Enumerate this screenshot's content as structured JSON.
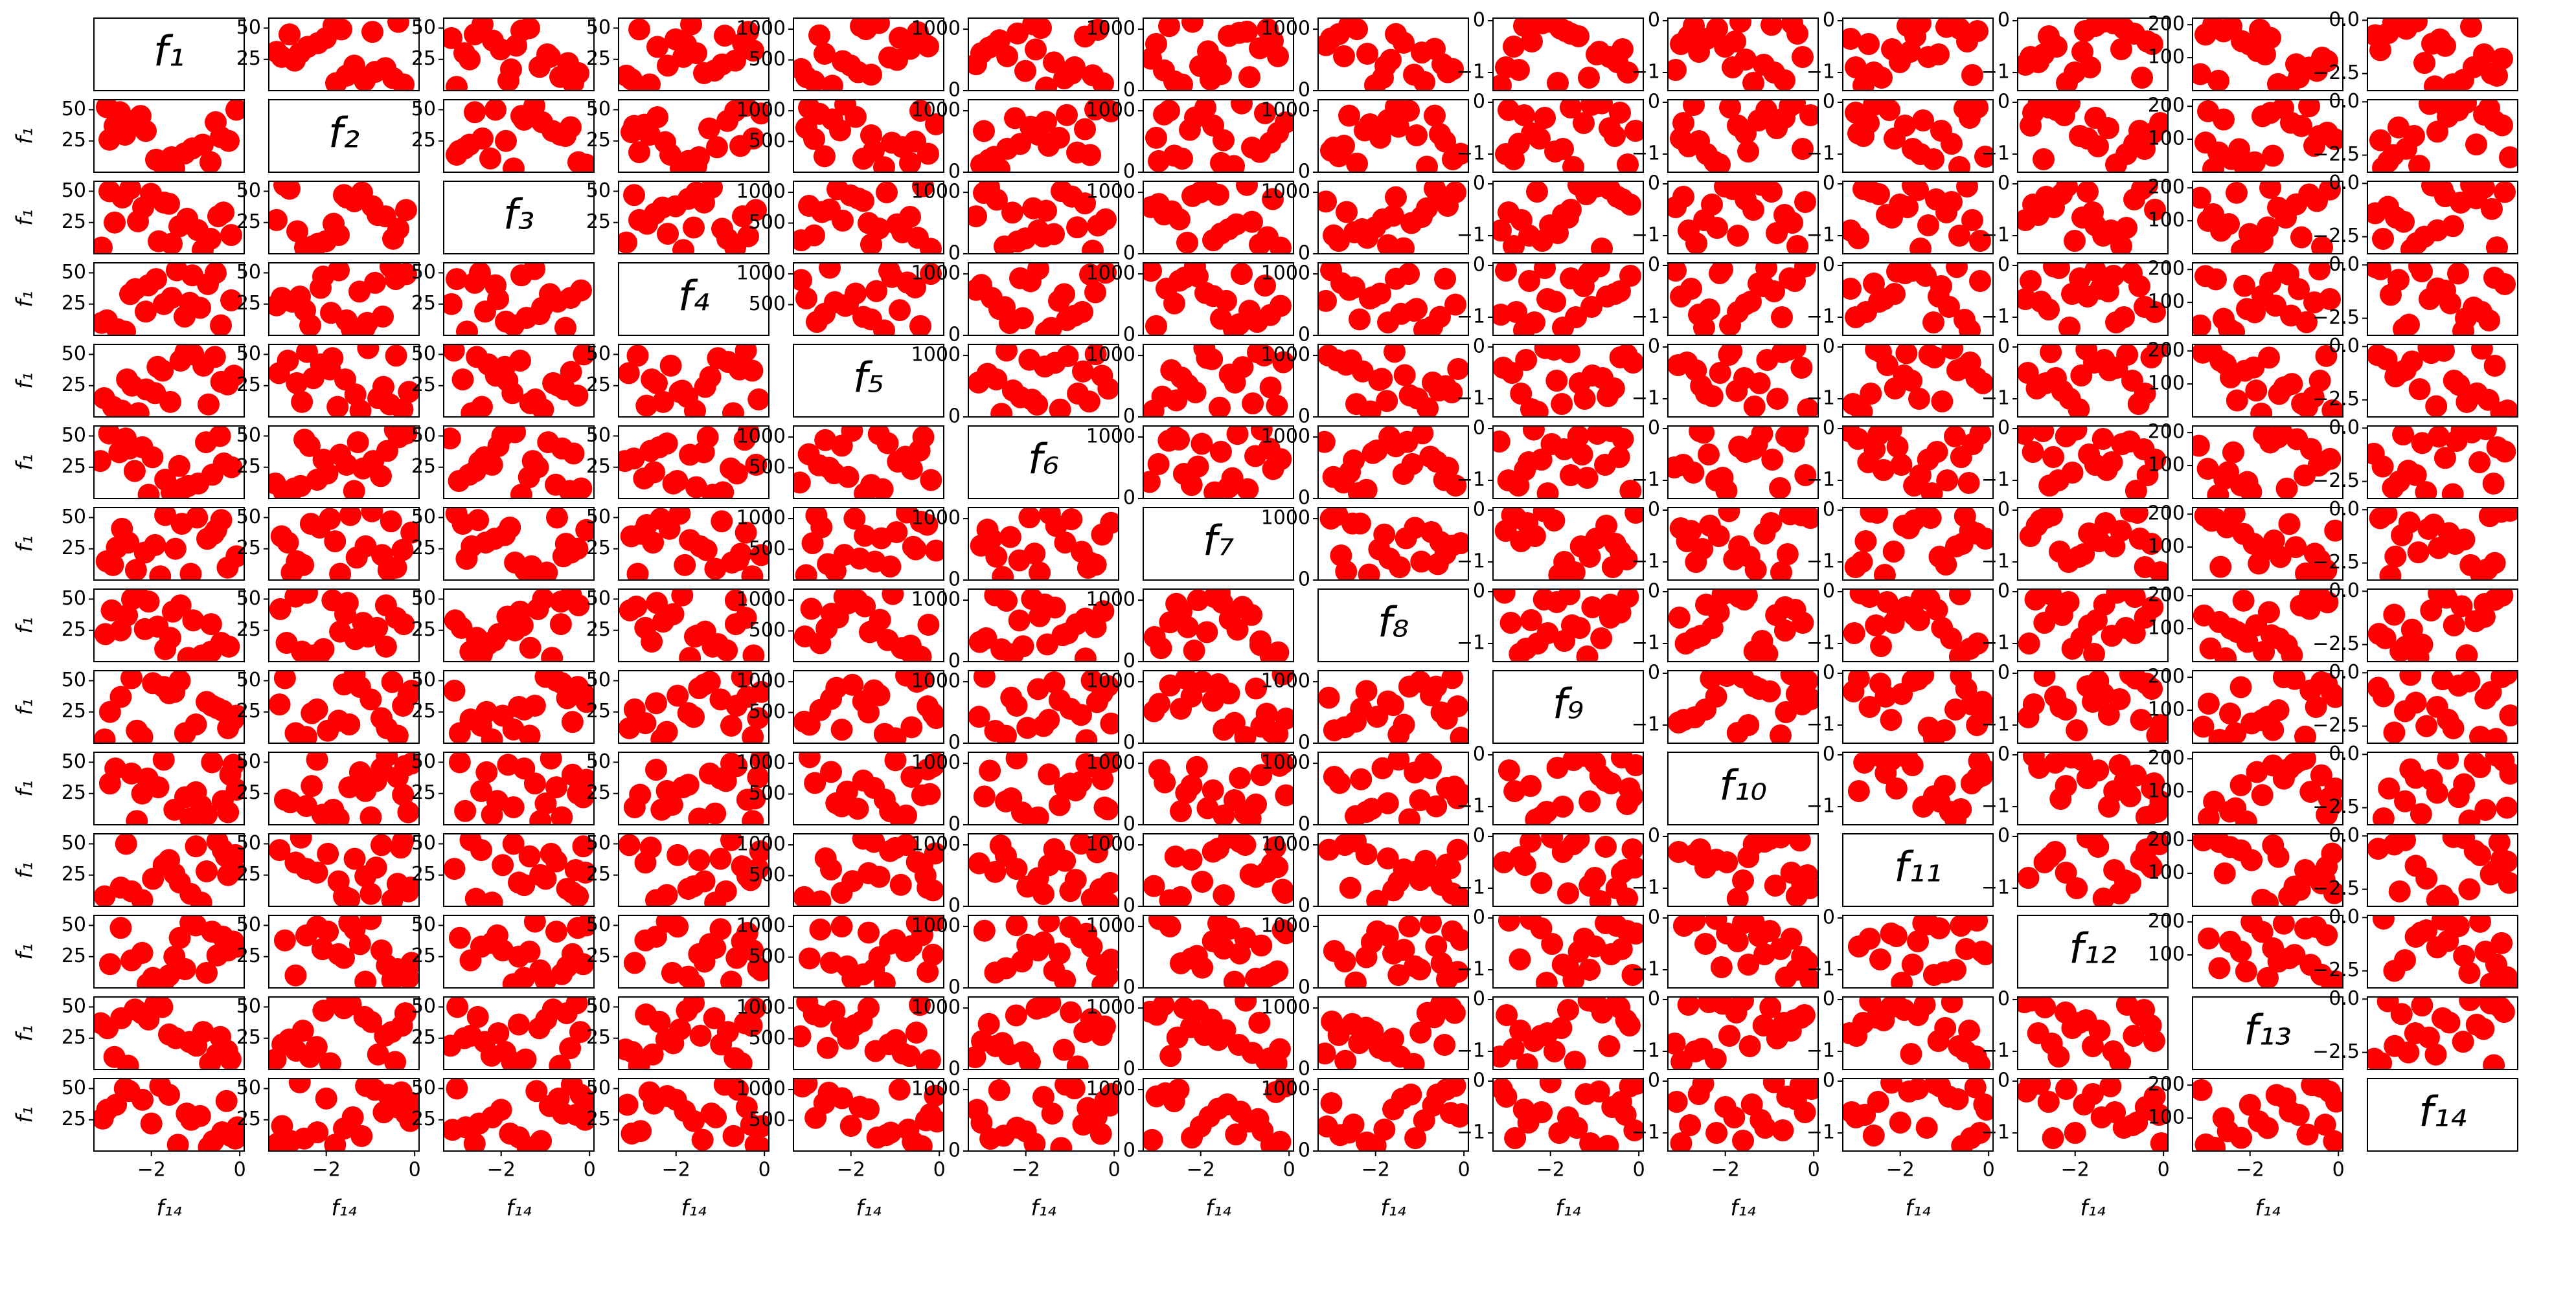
{
  "chart_data": {
    "type": "scatter_matrix",
    "color": "#ff0000",
    "variables": [
      {
        "name": "f₁",
        "lim": [
          0,
          58
        ],
        "ticks": [
          25,
          50
        ],
        "values": [
          12,
          48,
          25,
          33,
          8,
          52,
          19,
          41,
          5,
          28,
          37,
          15,
          45,
          22,
          10,
          30,
          50,
          3,
          26,
          40
        ]
      },
      {
        "name": "f₂",
        "lim": [
          0,
          58
        ],
        "ticks": [
          25,
          50
        ],
        "values": [
          30,
          10,
          52,
          20,
          45,
          5,
          38,
          15,
          27,
          49,
          8,
          35,
          18,
          42,
          24,
          12,
          55,
          31,
          6,
          47
        ]
      },
      {
        "name": "f₃",
        "lim": [
          0,
          58
        ],
        "ticks": [
          25,
          50
        ],
        "values": [
          45,
          22,
          8,
          50,
          30,
          14,
          40,
          27,
          3,
          36,
          19,
          53,
          11,
          33,
          25,
          48,
          6,
          42,
          17,
          29
        ]
      },
      {
        "name": "f₄",
        "lim": [
          0,
          58
        ],
        "ticks": [
          25,
          50
        ],
        "values": [
          5,
          38,
          27,
          14,
          49,
          32,
          20,
          44,
          9,
          53,
          16,
          35,
          24,
          41,
          3,
          30,
          47,
          12,
          37,
          21
        ]
      },
      {
        "name": "f₅",
        "lim": [
          0,
          1180
        ],
        "ticks": [
          500,
          1000
        ],
        "values": [
          600,
          950,
          300,
          1100,
          150,
          720,
          480,
          860,
          220,
          1000,
          540,
          80,
          680,
          410,
          900,
          260,
          780,
          350,
          1050,
          500
        ]
      },
      {
        "name": "f₆",
        "lim": [
          0,
          1180
        ],
        "ticks": [
          0,
          1000
        ],
        "values": [
          820,
          250,
          1080,
          460,
          700,
          120,
          930,
          380,
          610,
          1020,
          200,
          560,
          880,
          320,
          740,
          50,
          990,
          430,
          670,
          280
        ]
      },
      {
        "name": "f₇",
        "lim": [
          0,
          1180
        ],
        "ticks": [
          0,
          1000
        ],
        "values": [
          150,
          1000,
          640,
          890,
          330,
          560,
          1120,
          220,
          760,
          480,
          940,
          100,
          690,
          400,
          1050,
          270,
          810,
          520,
          180,
          960
        ]
      },
      {
        "name": "f₈",
        "lim": [
          0,
          1180
        ],
        "ticks": [
          0,
          1000
        ],
        "values": [
          1060,
          430,
          210,
          780,
          920,
          350,
          600,
          140,
          850,
          500,
          260,
          1000,
          680,
          90,
          560,
          920,
          300,
          740,
          400,
          620
        ]
      },
      {
        "name": "f₉",
        "lim": [
          -1.35,
          0.05
        ],
        "ticks": [
          {
            "value": -1,
            "label": "−1"
          },
          0
        ],
        "values": [
          -0.1,
          -0.8,
          -1.2,
          -0.3,
          -0.5,
          -1.0,
          -0.05,
          -0.6,
          -0.9,
          -0.2,
          -1.1,
          -0.4,
          -0.7,
          -0.02,
          -0.95,
          -0.25,
          -0.55,
          -1.25,
          -0.15,
          -0.65
        ]
      },
      {
        "name": "f₁₀",
        "lim": [
          -1.35,
          0.05
        ],
        "ticks": [
          {
            "value": -1,
            "label": "−1"
          },
          0
        ],
        "values": [
          -0.6,
          -0.05,
          -0.9,
          -1.2,
          -0.3,
          -0.7,
          -0.15,
          -1.0,
          -0.45,
          -0.02,
          -0.85,
          -0.35,
          -1.15,
          -0.5,
          -0.1,
          -0.75,
          -0.25,
          -0.95,
          -0.4,
          -0.08
        ]
      },
      {
        "name": "f₁₁",
        "lim": [
          -1.35,
          0.05
        ],
        "ticks": [
          {
            "value": -1,
            "label": "−1"
          },
          0
        ],
        "values": [
          -1.0,
          -0.4,
          -0.1,
          -0.7,
          -1.25,
          -0.2,
          -0.55,
          -0.03,
          -0.9,
          -0.3,
          -0.65,
          -1.1,
          -0.15,
          -0.8,
          -0.45,
          -0.05,
          -1.05,
          -0.35,
          -0.6,
          -0.12
        ]
      },
      {
        "name": "f₁₂",
        "lim": [
          -1.35,
          0.05
        ],
        "ticks": [
          {
            "value": -1,
            "label": "−1"
          },
          0
        ],
        "values": [
          -0.3,
          -1.1,
          -0.6,
          -0.02,
          -0.8,
          -0.45,
          -1.2,
          -0.15,
          -0.7,
          -0.9,
          -0.05,
          -0.5,
          -0.25,
          -1.0,
          -0.65,
          -0.1,
          -0.4,
          -0.85,
          -0.2,
          -0.55
        ]
      },
      {
        "name": "f₁₃",
        "lim": [
          0,
          220
        ],
        "ticks": [
          100,
          200
        ],
        "values": [
          180,
          60,
          120,
          20,
          200,
          90,
          150,
          40,
          170,
          110,
          10,
          195,
          70,
          140,
          30,
          160,
          100,
          50,
          185,
          80
        ]
      },
      {
        "name": "f₁₄",
        "lim": [
          -3.3,
          0.1
        ],
        "ticks": [
          {
            "value": -2.5,
            "label": "−2.5"
          },
          {
            "value": 0,
            "label": "0.0"
          }
        ],
        "xticks": [
          {
            "value": -2,
            "label": "−2"
          },
          0
        ],
        "values": [
          -0.2,
          -2.5,
          -1.1,
          -3.0,
          -0.6,
          -1.8,
          -0.05,
          -2.2,
          -1.4,
          -0.9,
          -2.8,
          -0.4,
          -1.6,
          -2.0,
          -0.1,
          -1.2,
          -2.6,
          -0.7,
          -3.1,
          -0.3
        ]
      }
    ]
  }
}
